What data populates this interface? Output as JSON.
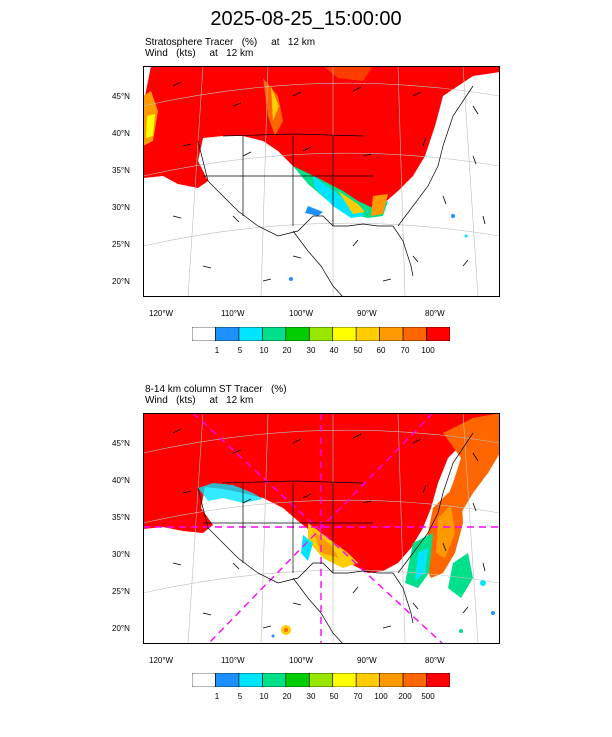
{
  "title": "2025-08-25_15:00:00",
  "panel1": {
    "line1": "Stratosphere Tracer   (%)     at   12 km",
    "line2": "Wind   (kts)     at   12 km",
    "lat_labels": [
      "45°N",
      "40°N",
      "35°N",
      "30°N",
      "25°N",
      "20°N"
    ],
    "lon_labels": [
      "120°W",
      "110°W",
      "100°W",
      "90°W",
      "80°W"
    ],
    "colorbar": {
      "labels": [
        "1",
        "5",
        "10",
        "20",
        "30",
        "40",
        "50",
        "60",
        "70",
        "100"
      ],
      "colors": [
        "#ffffff",
        "#1e90ff",
        "#00e5ff",
        "#00e08a",
        "#00cc00",
        "#99e600",
        "#ffff00",
        "#ffcc00",
        "#ff9900",
        "#ff6600",
        "#ff0000"
      ]
    }
  },
  "panel2": {
    "line1": "8-14 km column ST Tracer   (%)",
    "line2": "Wind   (kts)     at   12 km",
    "lat_labels": [
      "45°N",
      "40°N",
      "35°N",
      "30°N",
      "25°N",
      "20°N"
    ],
    "lon_labels": [
      "120°W",
      "110°W",
      "100°W",
      "90°W",
      "80°W"
    ],
    "colorbar": {
      "labels": [
        "1",
        "5",
        "10",
        "20",
        "30",
        "50",
        "70",
        "100",
        "200",
        "500"
      ],
      "colors": [
        "#ffffff",
        "#1e90ff",
        "#00e5ff",
        "#00e08a",
        "#00cc00",
        "#99e600",
        "#ffff00",
        "#ffcc00",
        "#ff9900",
        "#ff6600",
        "#ff0000"
      ]
    }
  }
}
